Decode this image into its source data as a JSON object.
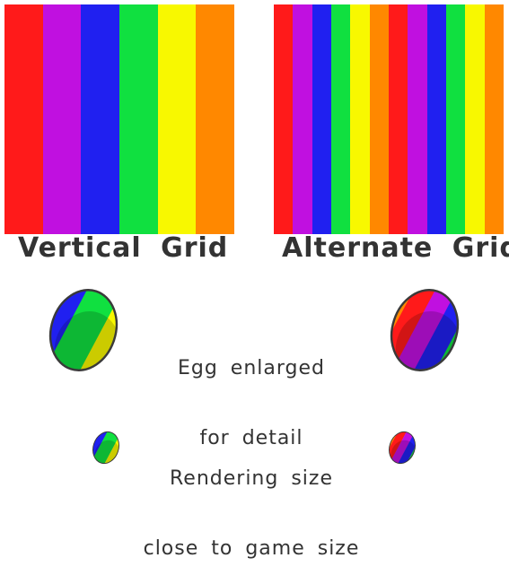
{
  "panels": [
    {
      "title": "Vertical Grid",
      "stripe_colors": [
        "#ff1a1a",
        "#c010e0",
        "#2020f0",
        "#10e040",
        "#f8f800",
        "#ff8800"
      ]
    },
    {
      "title": "Alternate Grid",
      "stripe_colors": [
        "#ff1a1a",
        "#c010e0",
        "#2020f0",
        "#10e040",
        "#f8f800",
        "#ff8800",
        "#ff1a1a",
        "#c010e0",
        "#2020f0",
        "#10e040",
        "#f8f800",
        "#ff8800"
      ]
    }
  ],
  "captions": {
    "enlarged": [
      "Egg enlarged",
      "for detail"
    ],
    "rendering": [
      "Rendering size",
      "close to game size"
    ]
  },
  "eggs": {
    "vertical_band_colors": [
      "#2020f0",
      "#10e040",
      "#f8f800"
    ],
    "alternate_band_colors": [
      "#ff8800",
      "#ff1a1a",
      "#c010e0",
      "#2020f0",
      "#10e040"
    ],
    "outline_color": "#3a3a3a"
  }
}
